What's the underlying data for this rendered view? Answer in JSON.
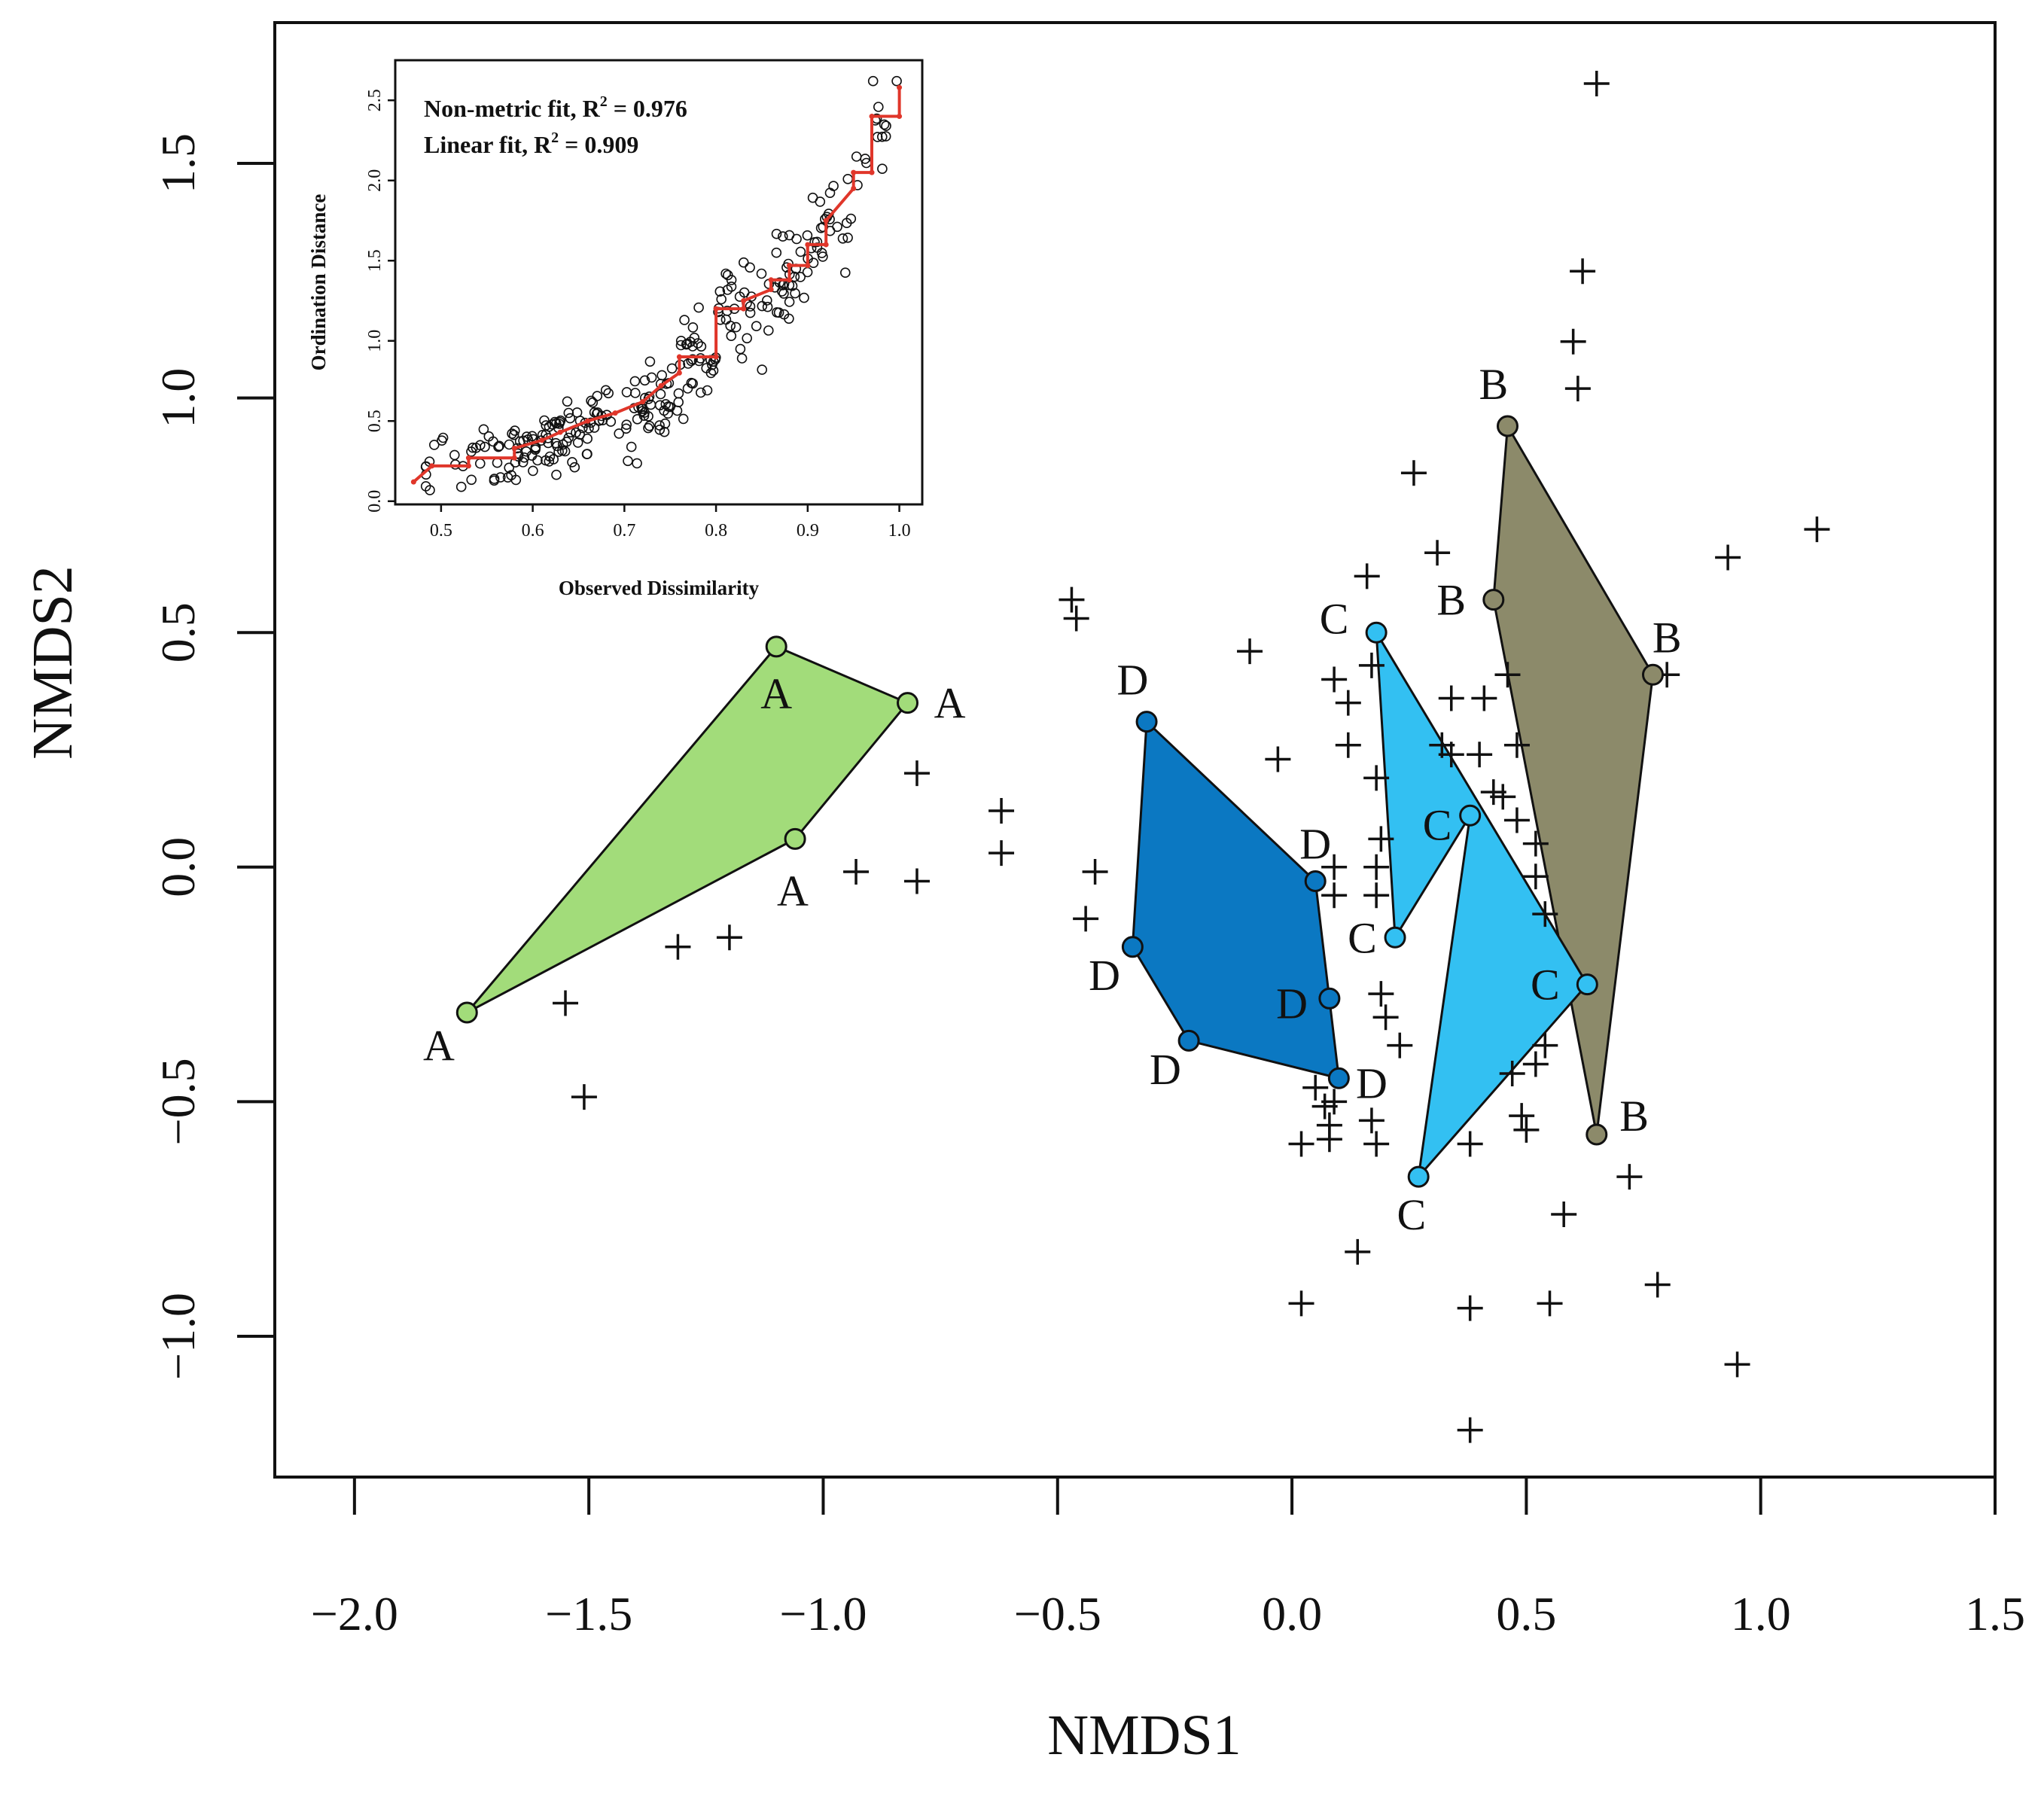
{
  "chart_data": {
    "type": "scatter",
    "subtype": "nmds-ordination",
    "xlabel": "NMDS1",
    "ylabel": "NMDS2",
    "xlim": [
      -2.17,
      1.5
    ],
    "ylim": [
      -1.3,
      1.8
    ],
    "xticks": [
      {
        "value": -2.0,
        "label": "−2.0"
      },
      {
        "value": -1.5,
        "label": "−1.5"
      },
      {
        "value": -1.0,
        "label": "−1.0"
      },
      {
        "value": -0.5,
        "label": "−0.5"
      },
      {
        "value": 0.0,
        "label": "0.0"
      },
      {
        "value": 0.5,
        "label": "0.5"
      },
      {
        "value": 1.0,
        "label": "1.0"
      },
      {
        "value": 1.5,
        "label": "1.5"
      }
    ],
    "yticks": [
      {
        "value": -1.0,
        "label": "−1.0"
      },
      {
        "value": -0.5,
        "label": "−0.5"
      },
      {
        "value": 0.0,
        "label": "0.0"
      },
      {
        "value": 0.5,
        "label": "0.5"
      },
      {
        "value": 1.0,
        "label": "1.0"
      },
      {
        "value": 1.5,
        "label": "1.5"
      }
    ],
    "groups": [
      {
        "name": "A",
        "color": "#a2dc7a",
        "hull": [
          [
            -1.1,
            0.47
          ],
          [
            -0.82,
            0.35
          ],
          [
            -1.06,
            0.06
          ],
          [
            -1.76,
            -0.31
          ]
        ],
        "labels": [
          {
            "x": -1.1,
            "y": 0.47,
            "dx": 0.0,
            "dy": -0.1
          },
          {
            "x": -0.82,
            "y": 0.35,
            "dx": 0.09,
            "dy": 0.0
          },
          {
            "x": -1.06,
            "y": 0.06,
            "dx": -0.005,
            "dy": -0.11
          },
          {
            "x": -1.76,
            "y": -0.31,
            "dx": -0.06,
            "dy": -0.07
          }
        ]
      },
      {
        "name": "B",
        "color": "#8c8a6a",
        "hull": [
          [
            0.46,
            0.94
          ],
          [
            0.77,
            0.41
          ],
          [
            0.65,
            -0.57
          ],
          [
            0.43,
            0.57
          ]
        ],
        "labels": [
          {
            "x": 0.46,
            "y": 0.94,
            "dx": -0.03,
            "dy": 0.09
          },
          {
            "x": 0.77,
            "y": 0.41,
            "dx": 0.03,
            "dy": 0.08
          },
          {
            "x": 0.65,
            "y": -0.57,
            "dx": 0.08,
            "dy": 0.04
          },
          {
            "x": 0.43,
            "y": 0.57,
            "dx": -0.09,
            "dy": 0.0
          }
        ]
      },
      {
        "name": "C",
        "color": "#33c0f2",
        "hull": [
          [
            0.18,
            0.5
          ],
          [
            0.63,
            -0.25
          ],
          [
            0.27,
            -0.66
          ],
          [
            0.38,
            0.11
          ],
          [
            0.22,
            -0.15
          ]
        ],
        "labels": [
          {
            "x": 0.18,
            "y": 0.5,
            "dx": -0.09,
            "dy": 0.03
          },
          {
            "x": 0.63,
            "y": -0.25,
            "dx": -0.09,
            "dy": 0.0
          },
          {
            "x": 0.27,
            "y": -0.66,
            "dx": -0.015,
            "dy": -0.08
          },
          {
            "x": 0.38,
            "y": 0.11,
            "dx": -0.07,
            "dy": -0.02
          },
          {
            "x": 0.22,
            "y": -0.15,
            "dx": -0.07,
            "dy": 0.0
          }
        ]
      },
      {
        "name": "D",
        "color": "#0b78c2",
        "hull": [
          [
            -0.31,
            0.31
          ],
          [
            0.05,
            -0.03
          ],
          [
            0.1,
            -0.45
          ],
          [
            -0.22,
            -0.37
          ],
          [
            -0.34,
            -0.17
          ]
        ],
        "labels": [
          {
            "x": -0.31,
            "y": 0.31,
            "dx": -0.03,
            "dy": 0.09
          },
          {
            "x": 0.05,
            "y": -0.03,
            "dx": 0.0,
            "dy": 0.08
          },
          {
            "x": 0.08,
            "y": -0.28,
            "dx": -0.08,
            "dy": -0.01
          },
          {
            "x": 0.1,
            "y": -0.45,
            "dx": 0.07,
            "dy": -0.01
          },
          {
            "x": -0.22,
            "y": -0.37,
            "dx": -0.05,
            "dy": -0.06
          },
          {
            "x": -0.34,
            "y": -0.17,
            "dx": -0.06,
            "dy": -0.06
          }
        ],
        "extra_points": [
          [
            0.08,
            -0.28
          ]
        ]
      }
    ],
    "species": [
      [
        0.65,
        1.67
      ],
      [
        0.62,
        1.27
      ],
      [
        0.6,
        1.12
      ],
      [
        0.61,
        1.02
      ],
      [
        0.26,
        0.84
      ],
      [
        0.31,
        0.67
      ],
      [
        0.93,
        0.66
      ],
      [
        1.12,
        0.72
      ],
      [
        0.8,
        0.41
      ],
      [
        0.16,
        0.62
      ],
      [
        -0.47,
        0.57
      ],
      [
        -0.46,
        0.53
      ],
      [
        -0.09,
        0.46
      ],
      [
        0.17,
        0.43
      ],
      [
        0.09,
        0.4
      ],
      [
        0.12,
        0.35
      ],
      [
        0.34,
        0.36
      ],
      [
        0.41,
        0.36
      ],
      [
        0.46,
        0.41
      ],
      [
        -0.03,
        0.23
      ],
      [
        0.12,
        0.26
      ],
      [
        0.32,
        0.26
      ],
      [
        0.34,
        0.24
      ],
      [
        0.4,
        0.24
      ],
      [
        0.48,
        0.26
      ],
      [
        0.18,
        0.19
      ],
      [
        0.43,
        0.16
      ],
      [
        0.45,
        0.15
      ],
      [
        0.48,
        0.1
      ],
      [
        -0.8,
        0.2
      ],
      [
        -0.62,
        0.12
      ],
      [
        -0.62,
        0.03
      ],
      [
        -0.42,
        -0.01
      ],
      [
        -0.93,
        -0.01
      ],
      [
        -0.8,
        -0.03
      ],
      [
        0.09,
        0.0
      ],
      [
        0.19,
        0.06
      ],
      [
        0.18,
        0.0
      ],
      [
        0.09,
        -0.06
      ],
      [
        0.18,
        -0.06
      ],
      [
        0.52,
        0.05
      ],
      [
        0.52,
        -0.02
      ],
      [
        0.54,
        -0.1
      ],
      [
        -0.44,
        -0.11
      ],
      [
        -1.2,
        -0.15
      ],
      [
        -1.31,
        -0.17
      ],
      [
        -1.55,
        -0.29
      ],
      [
        -1.51,
        -0.49
      ],
      [
        0.19,
        -0.27
      ],
      [
        0.2,
        -0.32
      ],
      [
        0.23,
        -0.38
      ],
      [
        0.05,
        -0.47
      ],
      [
        0.07,
        -0.51
      ],
      [
        0.09,
        -0.5
      ],
      [
        0.08,
        -0.55
      ],
      [
        0.17,
        -0.54
      ],
      [
        0.08,
        -0.58
      ],
      [
        0.02,
        -0.59
      ],
      [
        0.18,
        -0.59
      ],
      [
        0.38,
        -0.59
      ],
      [
        0.47,
        -0.44
      ],
      [
        0.49,
        -0.53
      ],
      [
        0.5,
        -0.56
      ],
      [
        0.52,
        -0.42
      ],
      [
        0.54,
        -0.38
      ],
      [
        0.72,
        -0.66
      ],
      [
        0.58,
        -0.74
      ],
      [
        0.14,
        -0.82
      ],
      [
        0.02,
        -0.93
      ],
      [
        0.38,
        -0.94
      ],
      [
        0.55,
        -0.93
      ],
      [
        0.78,
        -0.89
      ],
      [
        0.95,
        -1.06
      ],
      [
        0.38,
        -1.2
      ]
    ],
    "inset": {
      "type": "shepard",
      "xlabel": "Observed Dissimilarity",
      "ylabel": "Ordination Distance",
      "xlim": [
        0.45,
        1.025
      ],
      "ylim": [
        -0.02,
        2.75
      ],
      "xticks": [
        {
          "value": 0.5,
          "label": "0.5"
        },
        {
          "value": 0.6,
          "label": "0.6"
        },
        {
          "value": 0.7,
          "label": "0.7"
        },
        {
          "value": 0.8,
          "label": "0.8"
        },
        {
          "value": 0.9,
          "label": "0.9"
        },
        {
          "value": 1.0,
          "label": "1.0"
        }
      ],
      "yticks": [
        {
          "value": 0.0,
          "label": "0.0"
        },
        {
          "value": 0.5,
          "label": "0.5"
        },
        {
          "value": 1.0,
          "label": "1.0"
        },
        {
          "value": 1.5,
          "label": "1.5"
        },
        {
          "value": 2.0,
          "label": "2.0"
        },
        {
          "value": 2.5,
          "label": "2.5"
        }
      ],
      "annotations": [
        {
          "text": "Non-metric fit, R",
          "sup": "2",
          "tail": " = 0.976"
        },
        {
          "text": "Linear fit, R",
          "sup": "2",
          "tail": " = 0.909"
        }
      ],
      "step_fit": [
        [
          0.47,
          0.12
        ],
        [
          0.49,
          0.22
        ],
        [
          0.53,
          0.22
        ],
        [
          0.53,
          0.27
        ],
        [
          0.58,
          0.27
        ],
        [
          0.58,
          0.33
        ],
        [
          0.61,
          0.38
        ],
        [
          0.63,
          0.43
        ],
        [
          0.66,
          0.5
        ],
        [
          0.69,
          0.55
        ],
        [
          0.72,
          0.62
        ],
        [
          0.74,
          0.72
        ],
        [
          0.76,
          0.8
        ],
        [
          0.76,
          0.9
        ],
        [
          0.8,
          0.9
        ],
        [
          0.8,
          1.2
        ],
        [
          0.83,
          1.2
        ],
        [
          0.83,
          1.25
        ],
        [
          0.86,
          1.32
        ],
        [
          0.86,
          1.38
        ],
        [
          0.88,
          1.38
        ],
        [
          0.88,
          1.47
        ],
        [
          0.9,
          1.47
        ],
        [
          0.9,
          1.6
        ],
        [
          0.92,
          1.6
        ],
        [
          0.92,
          1.75
        ],
        [
          0.95,
          1.95
        ],
        [
          0.95,
          2.05
        ],
        [
          0.97,
          2.05
        ],
        [
          0.97,
          2.4
        ],
        [
          1.0,
          2.4
        ],
        [
          1.0,
          2.58
        ]
      ]
    }
  }
}
